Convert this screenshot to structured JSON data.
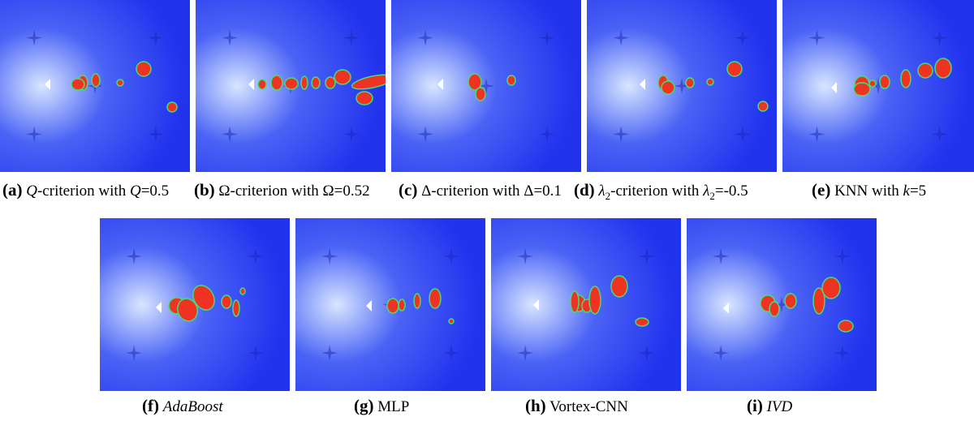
{
  "figure": {
    "panels": [
      {
        "id": "a",
        "label": "(a)",
        "caption_parts": [
          {
            "t": "Q",
            "i": true
          },
          {
            "t": "-criterion with "
          },
          {
            "t": "Q",
            "i": true
          },
          {
            "t": "=0.5"
          }
        ]
      },
      {
        "id": "b",
        "label": "(b)",
        "caption_parts": [
          {
            "t": "Ω-criterion with Ω=0.52"
          }
        ]
      },
      {
        "id": "c",
        "label": "(c)",
        "caption_parts": [
          {
            "t": "Δ-criterion with Δ=0.1"
          }
        ]
      },
      {
        "id": "d",
        "label": "(d)",
        "caption_parts": [
          {
            "t": "λ",
            "i": true
          },
          {
            "t": "2",
            "sub": true
          },
          {
            "t": "-criterion with "
          },
          {
            "t": "λ",
            "i": true
          },
          {
            "t": "2",
            "sub": true
          },
          {
            "t": "=-0.5"
          }
        ]
      },
      {
        "id": "e",
        "label": "(e)",
        "caption_parts": [
          {
            "t": "KNN with "
          },
          {
            "t": "k",
            "i": true
          },
          {
            "t": "=5"
          }
        ]
      },
      {
        "id": "f",
        "label": "(f)",
        "caption_parts": [
          {
            "t": "AdaBoost",
            "i": true
          }
        ]
      },
      {
        "id": "g",
        "label": "(g)",
        "caption_parts": [
          {
            "t": "MLP"
          }
        ]
      },
      {
        "id": "h",
        "label": "(h)",
        "caption_parts": [
          {
            "t": "Vortex-CNN"
          }
        ]
      },
      {
        "id": "i",
        "label": "(i)",
        "caption_parts": [
          {
            "t": "IVD",
            "i": true
          }
        ]
      }
    ]
  },
  "colors": {
    "field": "#2233ee",
    "glow": "#d8e6ff",
    "vortex": "#ee3322",
    "edge": "#44dd77",
    "obstacle": "#ffffff"
  }
}
